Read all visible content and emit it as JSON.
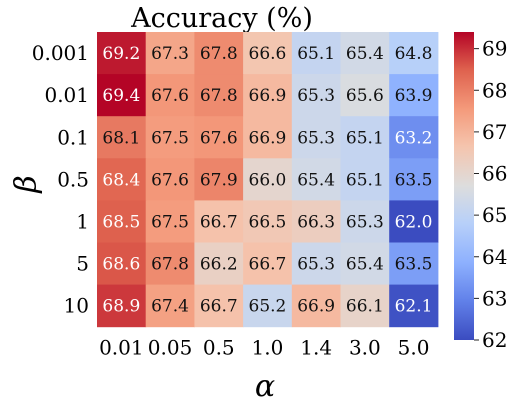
{
  "chart_data": {
    "type": "heatmap",
    "title": "Accuracy (%)",
    "xlabel": "α",
    "ylabel": "β",
    "x_categories": [
      "0.01",
      "0.05",
      "0.5",
      "1.0",
      "1.4",
      "3.0",
      "5.0"
    ],
    "y_categories": [
      "0.001",
      "0.01",
      "0.1",
      "0.5",
      "1",
      "5",
      "10"
    ],
    "values": [
      [
        69.2,
        67.3,
        67.8,
        66.6,
        65.1,
        65.4,
        64.8
      ],
      [
        69.4,
        67.6,
        67.8,
        66.9,
        65.3,
        65.6,
        63.9
      ],
      [
        68.1,
        67.5,
        67.6,
        66.9,
        65.3,
        65.1,
        63.2
      ],
      [
        68.4,
        67.6,
        67.9,
        66.0,
        65.4,
        65.1,
        63.5
      ],
      [
        68.5,
        67.5,
        66.7,
        66.5,
        66.3,
        65.3,
        62.0
      ],
      [
        68.6,
        67.8,
        66.2,
        66.7,
        65.3,
        65.4,
        63.5
      ],
      [
        68.9,
        67.4,
        66.7,
        65.2,
        66.9,
        66.1,
        62.1
      ]
    ],
    "colormap": "coolwarm",
    "color_range": [
      62.0,
      69.4
    ],
    "colorbar_ticks": [
      62,
      63,
      64,
      65,
      66,
      67,
      68,
      69
    ]
  }
}
